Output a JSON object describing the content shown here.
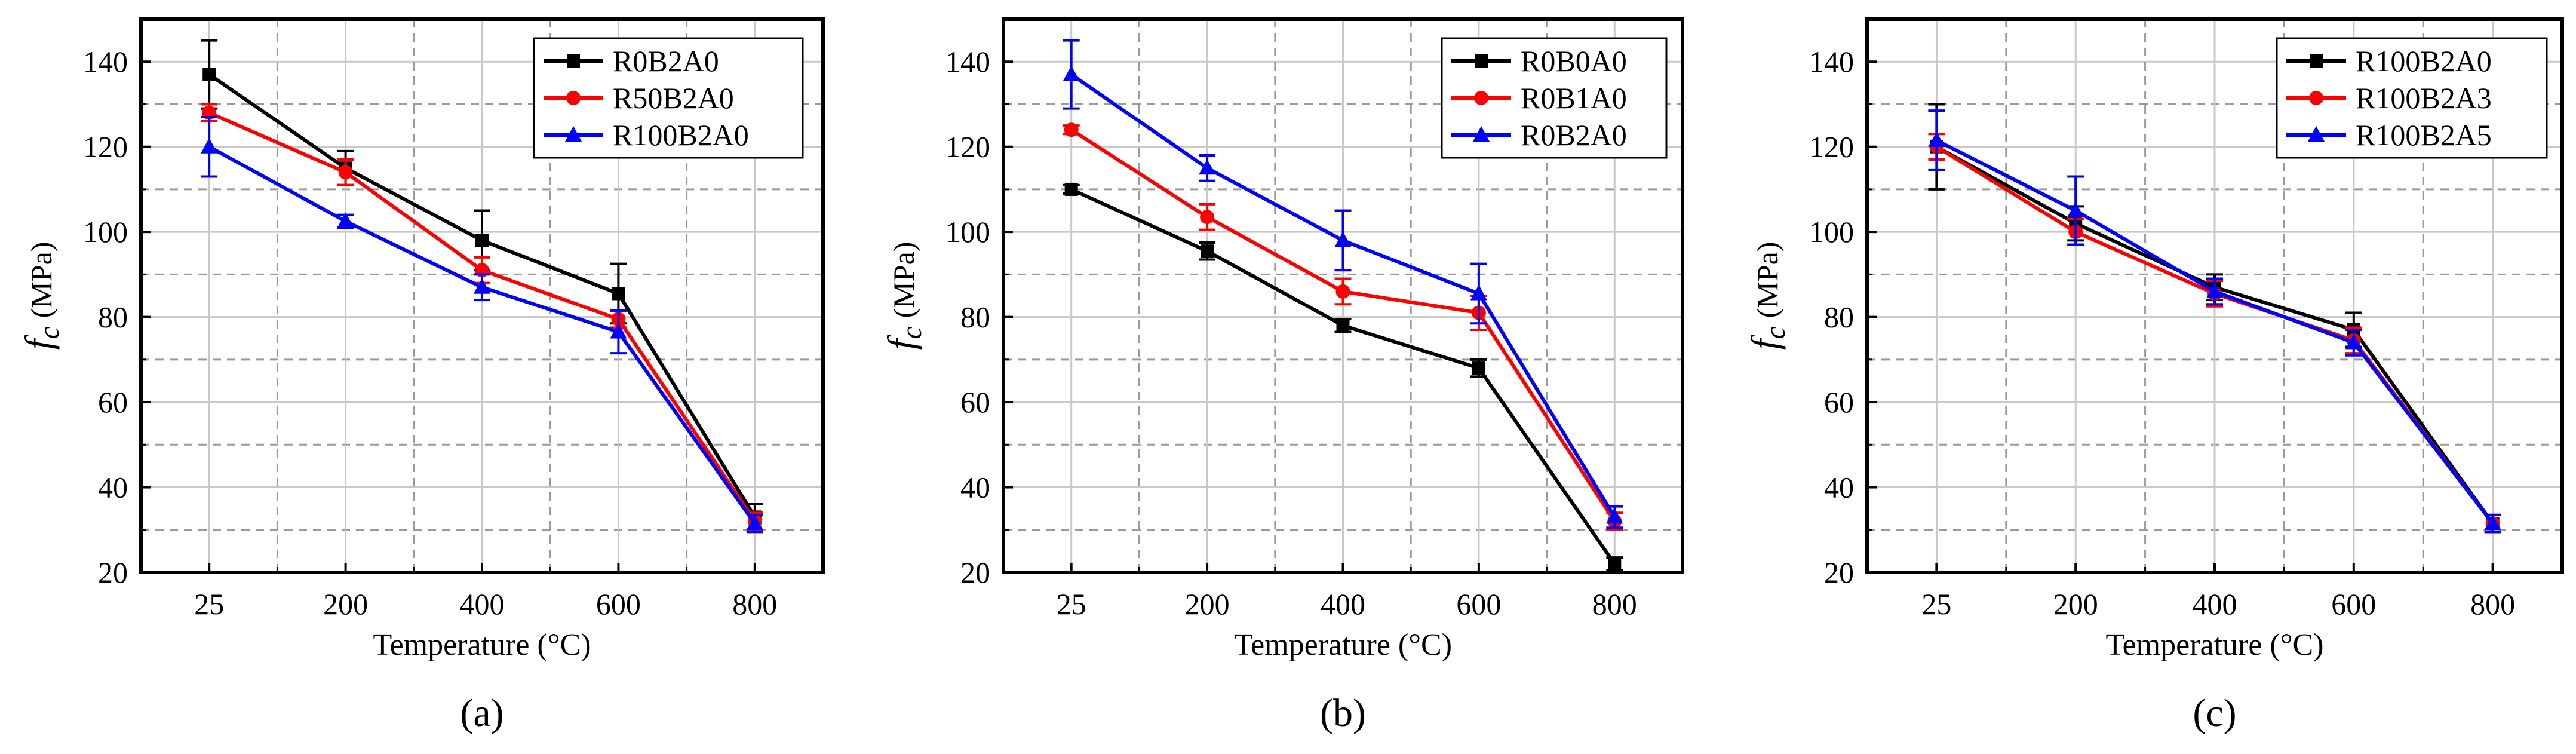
{
  "chart_data": [
    {
      "type": "line",
      "panel_label": "(a)",
      "panel_letter": "a",
      "xlabel": "Temperature (°C)",
      "ylabel_symbol": "f",
      "ylabel_sub": "c",
      "ylabel_unit": "(MPa)",
      "categories": [
        "25",
        "200",
        "400",
        "600",
        "800"
      ],
      "ylim": [
        20,
        150
      ],
      "yticks": [
        20,
        40,
        60,
        80,
        100,
        120,
        140
      ],
      "grid": true,
      "legend_position": "top-right",
      "series": [
        {
          "name": "R0B2A0",
          "color": "#000000",
          "marker": "square",
          "values": [
            137,
            115,
            98,
            85.5,
            33
          ],
          "errors": [
            8,
            4,
            7,
            7,
            3
          ]
        },
        {
          "name": "R50B2A0",
          "color": "#ff0000",
          "marker": "circle",
          "values": [
            128,
            114,
            91,
            79.5,
            32
          ],
          "errors": [
            2,
            3,
            3,
            2,
            2
          ]
        },
        {
          "name": "R100B2A0",
          "color": "#0000ff",
          "marker": "triangle",
          "values": [
            120,
            102.5,
            87,
            76.5,
            31.5
          ],
          "errors": [
            7,
            1.5,
            3,
            5,
            2
          ]
        }
      ]
    },
    {
      "type": "line",
      "panel_label": "(b)",
      "panel_letter": "b",
      "xlabel": "Temperature (°C)",
      "ylabel_symbol": "f",
      "ylabel_sub": "c",
      "ylabel_unit": "(MPa)",
      "categories": [
        "25",
        "200",
        "400",
        "600",
        "800"
      ],
      "ylim": [
        20,
        150
      ],
      "yticks": [
        20,
        40,
        60,
        80,
        100,
        120,
        140
      ],
      "grid": true,
      "legend_position": "top-right",
      "series": [
        {
          "name": "R0B0A0",
          "color": "#000000",
          "marker": "square",
          "values": [
            110,
            95.5,
            78,
            68,
            22
          ],
          "errors": [
            1,
            2,
            1.5,
            2,
            1.5
          ]
        },
        {
          "name": "R0B1A0",
          "color": "#ff0000",
          "marker": "circle",
          "values": [
            124,
            103.5,
            86,
            81,
            32
          ],
          "errors": [
            1,
            3,
            3,
            4,
            2
          ]
        },
        {
          "name": "R0B2A0",
          "color": "#0000ff",
          "marker": "triangle",
          "values": [
            137,
            115,
            98,
            85.5,
            33
          ],
          "errors": [
            8,
            3,
            7,
            7,
            2.5
          ]
        }
      ]
    },
    {
      "type": "line",
      "panel_label": "(c)",
      "panel_letter": "c",
      "xlabel": "Temperature (°C)",
      "ylabel_symbol": "f",
      "ylabel_sub": "c",
      "ylabel_unit": "(MPa)",
      "categories": [
        "25",
        "200",
        "400",
        "600",
        "800"
      ],
      "ylim": [
        20,
        150
      ],
      "yticks": [
        20,
        40,
        60,
        80,
        100,
        120,
        140
      ],
      "grid": true,
      "legend_position": "top-right",
      "series": [
        {
          "name": "R100B2A0",
          "color": "#000000",
          "marker": "square",
          "values": [
            120,
            102,
            87,
            77,
            31.5
          ],
          "errors": [
            10,
            4,
            3,
            4,
            2
          ]
        },
        {
          "name": "R100B2A3",
          "color": "#ff0000",
          "marker": "circle",
          "values": [
            120,
            100,
            85.5,
            74.5,
            31.5
          ],
          "errors": [
            3,
            3,
            3,
            3,
            2
          ]
        },
        {
          "name": "R100B2A5",
          "color": "#0000ff",
          "marker": "triangle",
          "values": [
            121.5,
            105,
            86,
            74,
            31.5
          ],
          "errors": [
            7,
            8,
            3,
            3,
            2
          ]
        }
      ]
    }
  ]
}
